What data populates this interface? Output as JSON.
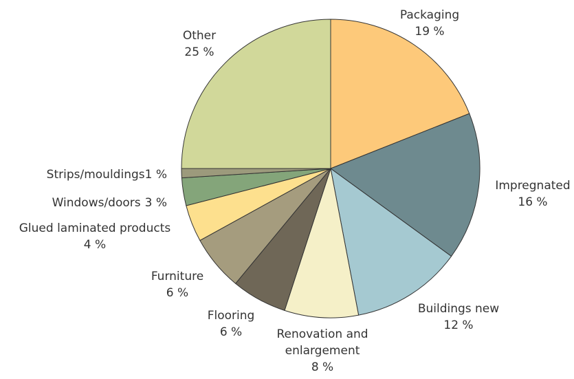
{
  "chart_data": {
    "type": "pie",
    "categories": [
      "Packaging",
      "Impregnated",
      "Buildings new",
      "Renovation and enlargement",
      "Flooring",
      "Furniture",
      "Glued laminated products",
      "Windows/doors",
      "Strips/mouldings",
      "Other"
    ],
    "values": [
      19,
      16,
      12,
      8,
      6,
      6,
      4,
      3,
      1,
      25
    ],
    "value_labels": [
      "19 %",
      "16 %",
      "12 %",
      "8 %",
      "6 %",
      "6 %",
      "4 %",
      "3 %",
      "1 %",
      "25 %"
    ],
    "colors": [
      "#fdc97a",
      "#6e8a8f",
      "#a5c9d1",
      "#f5f0c8",
      "#6f6757",
      "#a59c7e",
      "#fde08e",
      "#84a57a",
      "#9c9a7c",
      "#d1d89a"
    ]
  }
}
